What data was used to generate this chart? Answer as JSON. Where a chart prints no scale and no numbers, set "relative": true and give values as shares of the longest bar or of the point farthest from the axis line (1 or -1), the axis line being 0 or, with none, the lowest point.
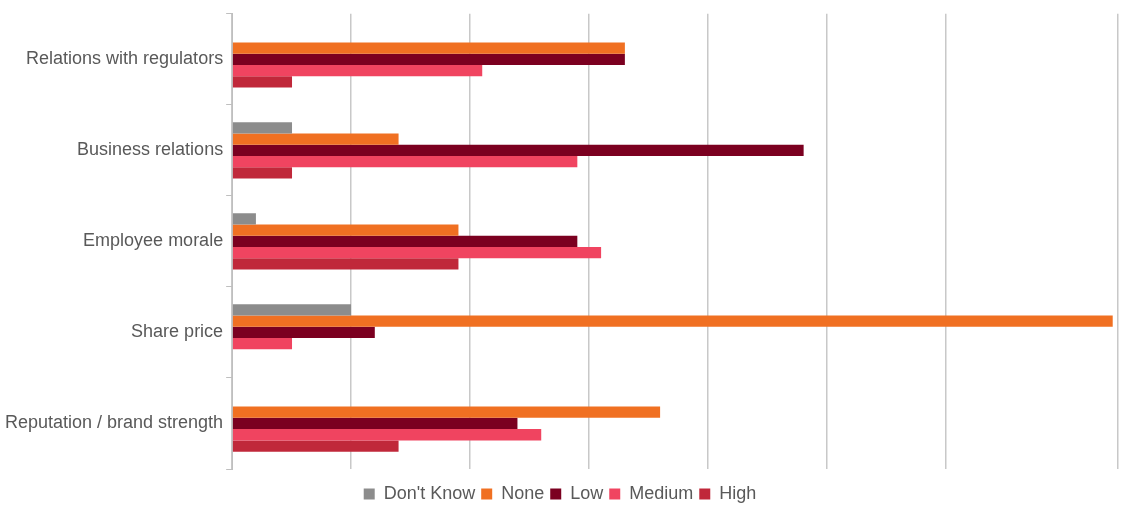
{
  "chart_data": {
    "type": "bar",
    "orientation": "horizontal",
    "relative": true,
    "grid": "x",
    "legend": "bottom",
    "categories": [
      "Relations with regulators",
      "Business relations",
      "Employee morale",
      "Share price",
      "Reputation / brand strength"
    ],
    "series": [
      {
        "name": "Don't Know",
        "color": "#8c8c8c",
        "values": [
          null,
          0.068,
          0.027,
          0.135,
          null
        ]
      },
      {
        "name": "None",
        "color": "#f07022",
        "values": [
          0.446,
          0.189,
          0.257,
          1,
          0.486
        ]
      },
      {
        "name": "Low",
        "color": "#7b0020",
        "values": [
          0.446,
          0.649,
          0.392,
          0.162,
          0.324
        ]
      },
      {
        "name": "Medium",
        "color": "#f04460",
        "values": [
          0.284,
          0.392,
          0.419,
          0.068,
          0.351
        ]
      },
      {
        "name": "High",
        "color": "#c0283a",
        "values": [
          0.068,
          0.068,
          0.257,
          null,
          0.189
        ]
      }
    ]
  }
}
